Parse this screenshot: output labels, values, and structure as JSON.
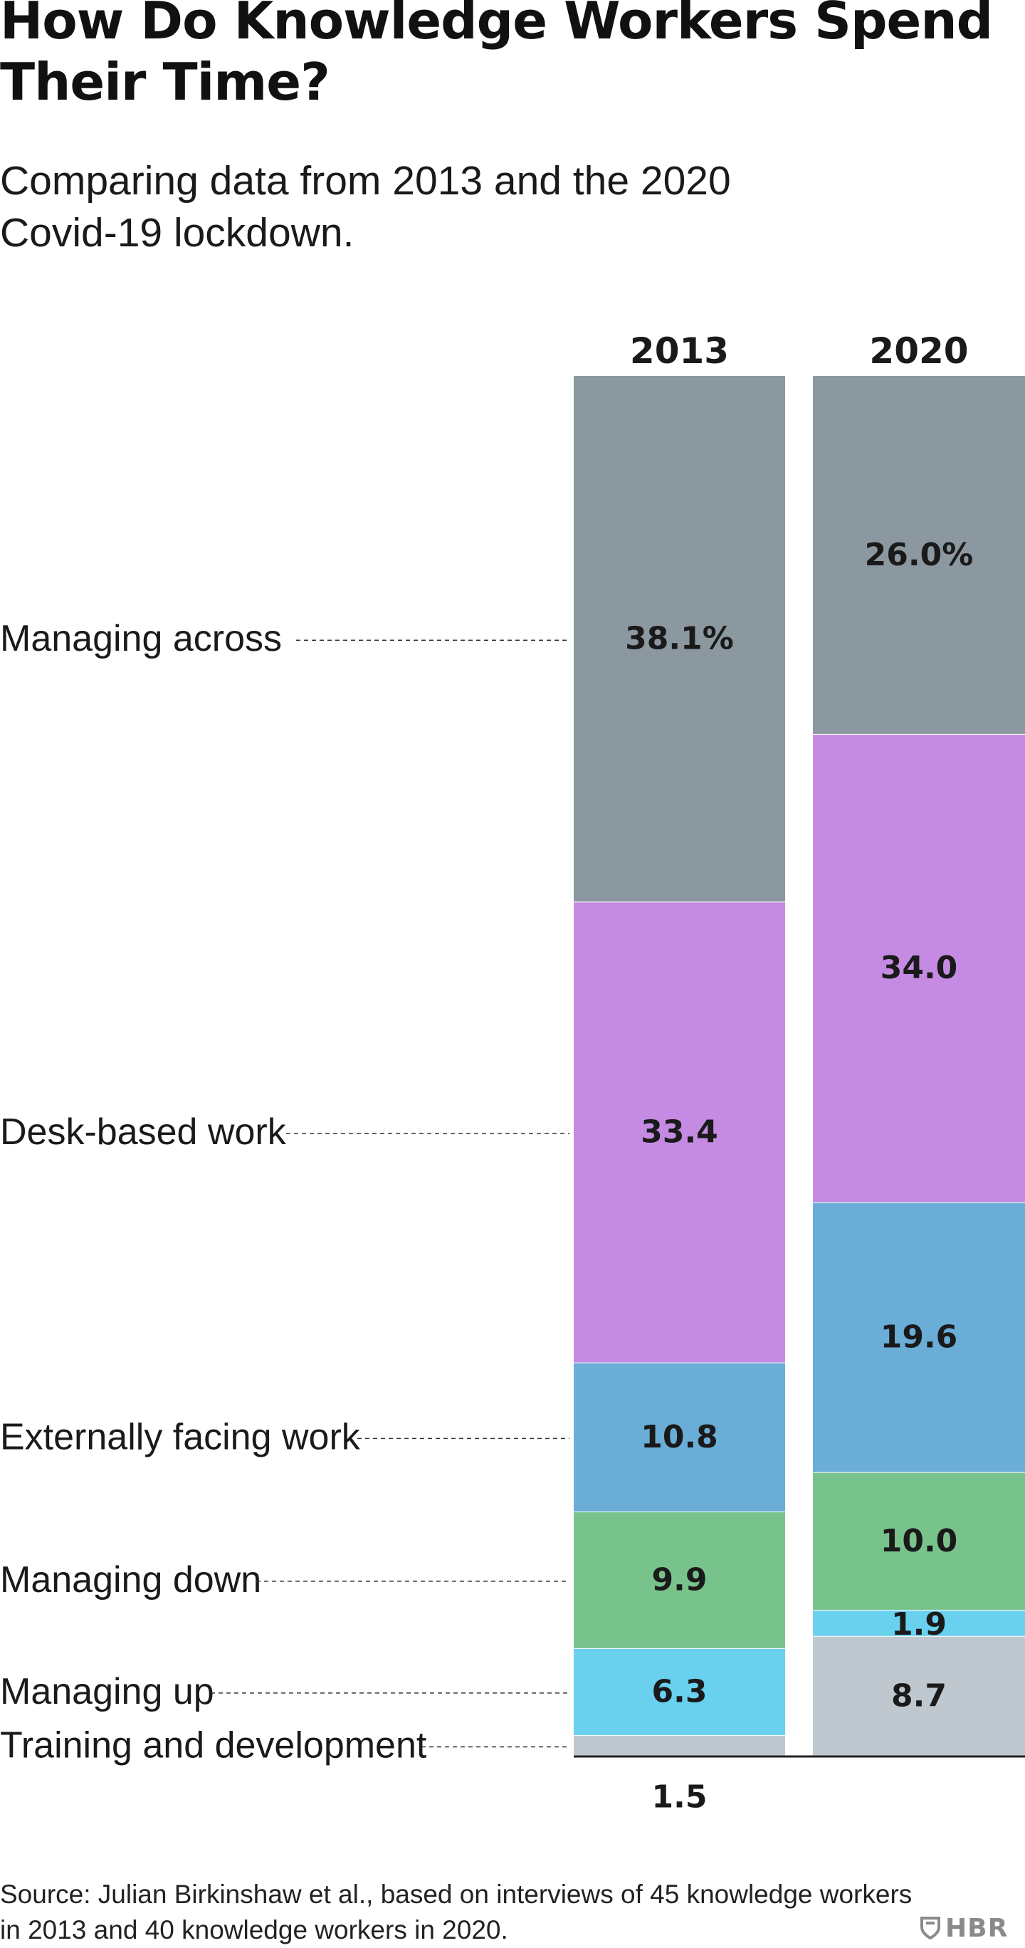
{
  "title": "How Do Knowledge Workers Spend Their Time?",
  "subtitle": "Comparing data from 2013 and the 2020 Covid-19 lockdown.",
  "source": "Source: Julian Birkinshaw et al., based on interviews of 45 knowledge workers in 2013 and 40 knowledge workers in 2020.",
  "logo_text": "HBR",
  "chart_data": {
    "type": "bar",
    "stacked": true,
    "unit": "%",
    "categories": [
      "2013",
      "2020"
    ],
    "series": [
      {
        "name": "Managing across",
        "values": [
          38.1,
          26.0
        ],
        "labels": [
          "38.1%",
          "26.0%"
        ],
        "color": "#8c989f"
      },
      {
        "name": "Desk-based work",
        "values": [
          33.4,
          34.0
        ],
        "labels": [
          "33.4",
          "34.0"
        ],
        "color": "#c58be3"
      },
      {
        "name": "Externally facing work",
        "values": [
          10.8,
          19.6
        ],
        "labels": [
          "10.8",
          "19.6"
        ],
        "color": "#6aaed8"
      },
      {
        "name": "Managing down",
        "values": [
          9.9,
          10.0
        ],
        "labels": [
          "9.9",
          "10.0"
        ],
        "color": "#78c38c"
      },
      {
        "name": "Managing up",
        "values": [
          6.3,
          1.9
        ],
        "labels": [
          "6.3",
          "1.9"
        ],
        "color": "#69d0ee"
      },
      {
        "name": "Training and development",
        "values": [
          1.5,
          8.7
        ],
        "labels": [
          "1.5",
          "8.7"
        ],
        "color": "#bfc8ce"
      }
    ],
    "ylim": [
      0,
      100
    ],
    "legend": "left, dashed leader lines to the 2013 bar"
  }
}
